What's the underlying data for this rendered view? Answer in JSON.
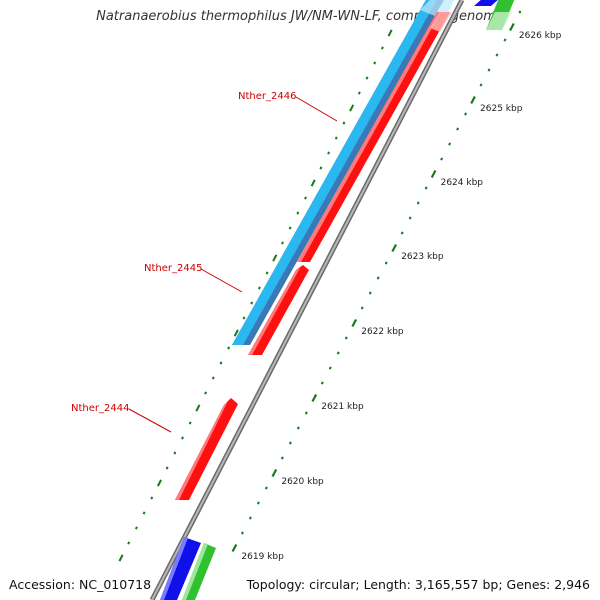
{
  "title": "Natranaerobius thermophilus JW/NM-WN-LF, complete genome",
  "footer": {
    "accession": "Accession: NC_010718",
    "summary": "Topology: circular; Length: 3,165,557 bp; Genes: 2,946"
  },
  "colors": {
    "backbone": "#888888",
    "forward_gene": "#ff1010",
    "reverse_gene": "#29b8f0",
    "reverse_gene_inner": "#3a78b8",
    "blue_gene": "#1010e8",
    "green_gene": "#30c030",
    "ticks": "#1a7a1a",
    "label": "#cc0000",
    "tick_label": "#222222"
  },
  "ruler": {
    "unit": "kbp",
    "ticks": [
      {
        "value": 2619,
        "label": "2619 kbp"
      },
      {
        "value": 2620,
        "label": "2620 kbp"
      },
      {
        "value": 2621,
        "label": "2621 kbp"
      },
      {
        "value": 2622,
        "label": "2622 kbp"
      },
      {
        "value": 2623,
        "label": "2623 kbp"
      },
      {
        "value": 2624,
        "label": "2624 kbp"
      },
      {
        "value": 2625,
        "label": "2625 kbp"
      },
      {
        "value": 2626,
        "label": "2626 kbp"
      }
    ]
  },
  "genes": [
    {
      "name": "Nther_2444",
      "strand": "forward",
      "labeled": true
    },
    {
      "name": "Nther_2445",
      "strand": "forward",
      "labeled": true
    },
    {
      "name": "Nther_2446",
      "strand": "reverse",
      "labeled": true
    }
  ]
}
